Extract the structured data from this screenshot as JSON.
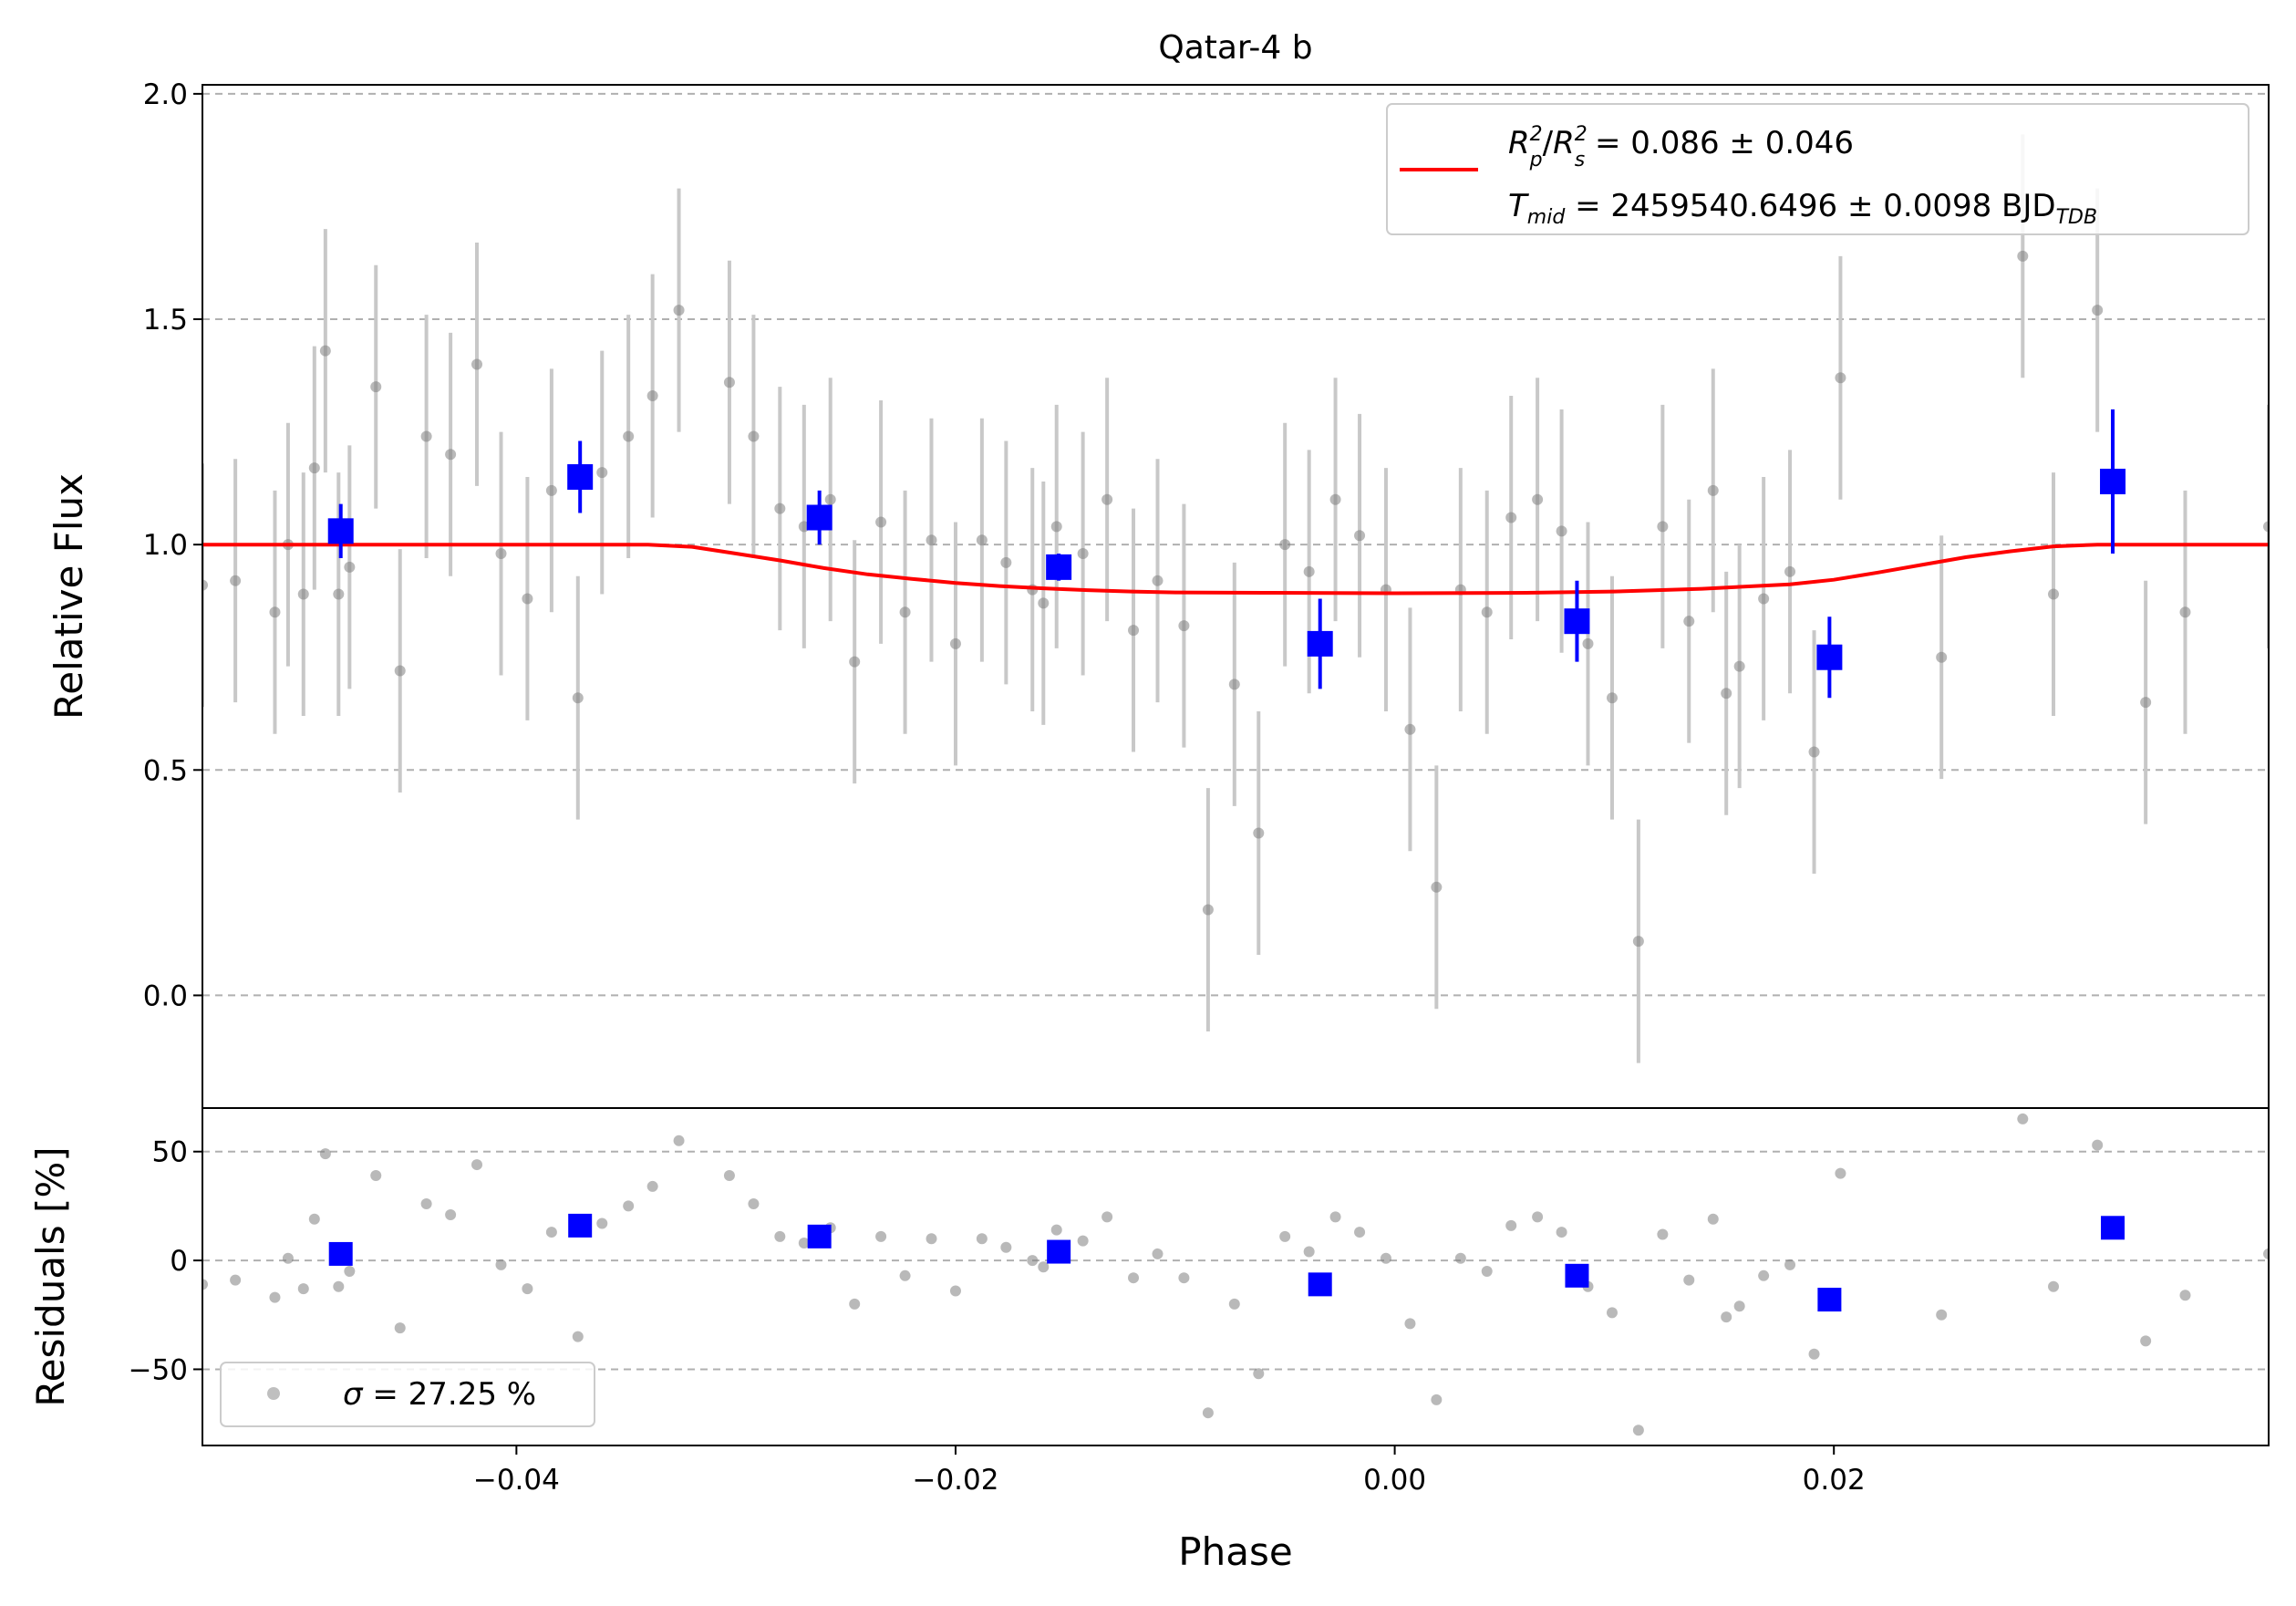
{
  "chart_data": [
    {
      "type": "scatter",
      "panel": "light-curve",
      "title": "Qatar-4 b",
      "xlabel": "Phase",
      "ylabel": "Relative Flux",
      "xlim": [
        -0.0543,
        0.0398
      ],
      "ylim": [
        -0.25,
        2.02
      ],
      "xticks": [
        "−0.04",
        "−0.02",
        "0.00",
        "0.02"
      ],
      "xtick_values": [
        -0.04,
        -0.02,
        0.0,
        0.02
      ],
      "yticks": [
        "0.0",
        "0.5",
        "1.0",
        "1.5",
        "2.0"
      ],
      "ytick_values": [
        0.0,
        0.5,
        1.0,
        1.5,
        2.0
      ],
      "grid": "horizontal dashed",
      "legend": {
        "placement": "top-right",
        "line1": {
          "lhs_sym": "R",
          "lhs_sub1": "p",
          "lhs_sup1": "2",
          "lhs_slash": "/",
          "lhs_sub2": "s",
          "lhs_sup2": "2",
          "text": " = 0.086 ± 0.046"
        },
        "line2": {
          "sym": "T",
          "sub": "mid",
          "text": " = 2459540.6496 ± 0.0098 BJD",
          "unit_sub": "TDB"
        }
      },
      "colors": {
        "raw": "#808080",
        "raw_err": "#c8c8c8",
        "binned": "#0000ff",
        "model": "#ff0000",
        "grid": "#b0b0b0"
      },
      "series": [
        {
          "kind": "raw-data",
          "err": 0.27,
          "points": [
            [
              -0.0543,
              0.91
            ],
            [
              -0.0528,
              0.92
            ],
            [
              -0.051,
              0.85
            ],
            [
              -0.0504,
              1.0
            ],
            [
              -0.0497,
              0.89
            ],
            [
              -0.0492,
              1.17
            ],
            [
              -0.0487,
              1.43
            ],
            [
              -0.0481,
              0.89
            ],
            [
              -0.0476,
              0.95
            ],
            [
              -0.0464,
              1.35
            ],
            [
              -0.0453,
              0.72
            ],
            [
              -0.0441,
              1.24
            ],
            [
              -0.043,
              1.2
            ],
            [
              -0.0418,
              1.4
            ],
            [
              -0.0407,
              0.98
            ],
            [
              -0.0395,
              0.88
            ],
            [
              -0.0384,
              1.12
            ],
            [
              -0.0372,
              0.66
            ],
            [
              -0.0361,
              1.16
            ],
            [
              -0.0349,
              1.24
            ],
            [
              -0.0338,
              1.33
            ],
            [
              -0.0326,
              1.52
            ],
            [
              -0.0303,
              1.36
            ],
            [
              -0.0292,
              1.24
            ],
            [
              -0.028,
              1.08
            ],
            [
              -0.0269,
              1.04
            ],
            [
              -0.0257,
              1.1
            ],
            [
              -0.0246,
              0.74
            ],
            [
              -0.0234,
              1.05
            ],
            [
              -0.0223,
              0.85
            ],
            [
              -0.0211,
              1.01
            ],
            [
              -0.02,
              0.78
            ],
            [
              -0.0188,
              1.01
            ],
            [
              -0.0177,
              0.96
            ],
            [
              -0.0165,
              0.9
            ],
            [
              -0.016,
              0.87
            ],
            [
              -0.0154,
              1.04
            ],
            [
              -0.0142,
              0.98
            ],
            [
              -0.0131,
              1.1
            ],
            [
              -0.0119,
              0.81
            ],
            [
              -0.0108,
              0.92
            ],
            [
              -0.0096,
              0.82
            ],
            [
              -0.0085,
              0.19
            ],
            [
              -0.0073,
              0.69
            ],
            [
              -0.0062,
              0.36
            ],
            [
              -0.005,
              1.0
            ],
            [
              -0.0039,
              0.94
            ],
            [
              -0.0027,
              1.1
            ],
            [
              -0.0016,
              1.02
            ],
            [
              -0.0004,
              0.9
            ],
            [
              0.0007,
              0.59
            ],
            [
              0.0019,
              0.24
            ],
            [
              0.003,
              0.9
            ],
            [
              0.0042,
              0.85
            ],
            [
              0.0053,
              1.06
            ],
            [
              0.0065,
              1.1
            ],
            [
              0.0076,
              1.03
            ],
            [
              0.0088,
              0.78
            ],
            [
              0.0099,
              0.66
            ],
            [
              0.0111,
              0.12
            ],
            [
              0.0122,
              1.04
            ],
            [
              0.0134,
              0.83
            ],
            [
              0.0145,
              1.12
            ],
            [
              0.0151,
              0.67
            ],
            [
              0.0157,
              0.73
            ],
            [
              0.0168,
              0.88
            ],
            [
              0.018,
              0.94
            ],
            [
              0.0191,
              0.54
            ],
            [
              0.0203,
              1.37
            ],
            [
              0.0249,
              0.75
            ],
            [
              0.0286,
              1.64
            ],
            [
              0.03,
              0.89
            ],
            [
              0.032,
              1.52
            ],
            [
              0.0342,
              0.65
            ],
            [
              0.036,
              0.85
            ],
            [
              0.0398,
              1.04
            ]
          ]
        },
        {
          "kind": "binned",
          "points": [
            [
              -0.048,
              1.03,
              0.06
            ],
            [
              -0.0371,
              1.15,
              0.08
            ],
            [
              -0.0262,
              1.06,
              0.06
            ],
            [
              -0.0153,
              0.95,
              0.03
            ],
            [
              -0.0034,
              0.78,
              0.1
            ],
            [
              0.0083,
              0.83,
              0.09
            ],
            [
              0.0198,
              0.75,
              0.09
            ],
            [
              0.0327,
              1.14,
              0.16
            ]
          ]
        },
        {
          "kind": "model",
          "depth": 0.108,
          "points": [
            [
              -0.0543,
              1.0
            ],
            [
              -0.034,
              1.0
            ],
            [
              -0.032,
              0.995
            ],
            [
              -0.03,
              0.98
            ],
            [
              -0.028,
              0.965
            ],
            [
              -0.026,
              0.948
            ],
            [
              -0.024,
              0.934
            ],
            [
              -0.022,
              0.924
            ],
            [
              -0.02,
              0.915
            ],
            [
              -0.018,
              0.908
            ],
            [
              -0.016,
              0.903
            ],
            [
              -0.014,
              0.899
            ],
            [
              -0.012,
              0.896
            ],
            [
              -0.01,
              0.894
            ],
            [
              -0.006,
              0.893
            ],
            [
              0.0,
              0.892
            ],
            [
              0.006,
              0.893
            ],
            [
              0.01,
              0.896
            ],
            [
              0.014,
              0.902
            ],
            [
              0.018,
              0.912
            ],
            [
              0.02,
              0.922
            ],
            [
              0.022,
              0.938
            ],
            [
              0.024,
              0.955
            ],
            [
              0.026,
              0.972
            ],
            [
              0.028,
              0.985
            ],
            [
              0.03,
              0.996
            ],
            [
              0.032,
              1.0
            ],
            [
              0.0398,
              1.0
            ]
          ]
        }
      ]
    },
    {
      "type": "scatter",
      "panel": "residuals",
      "xlabel": "Phase",
      "ylabel": "Residuals [%]",
      "xlim": [
        -0.0543,
        0.0398
      ],
      "ylim": [
        -85,
        70
      ],
      "yticks": [
        "−50",
        "0",
        "50"
      ],
      "ytick_values": [
        -50,
        0,
        50
      ],
      "grid": "horizontal dashed",
      "legend": {
        "placement": "bottom-left",
        "sym": "σ",
        "text": " = 27.25 %"
      },
      "series": [
        {
          "kind": "raw-residuals",
          "points": [
            [
              -0.0543,
              -11
            ],
            [
              -0.0528,
              -9
            ],
            [
              -0.051,
              -17
            ],
            [
              -0.0504,
              1
            ],
            [
              -0.0497,
              -13
            ],
            [
              -0.0492,
              19
            ],
            [
              -0.0487,
              49
            ],
            [
              -0.0481,
              -12
            ],
            [
              -0.0476,
              -5
            ],
            [
              -0.0464,
              39
            ],
            [
              -0.0453,
              -31
            ],
            [
              -0.0441,
              26
            ],
            [
              -0.043,
              21
            ],
            [
              -0.0418,
              44
            ],
            [
              -0.0407,
              -2
            ],
            [
              -0.0395,
              -13
            ],
            [
              -0.0384,
              13
            ],
            [
              -0.0372,
              -35
            ],
            [
              -0.0361,
              17
            ],
            [
              -0.0349,
              25
            ],
            [
              -0.0338,
              34
            ],
            [
              -0.0326,
              55
            ],
            [
              -0.0303,
              39
            ],
            [
              -0.0292,
              26
            ],
            [
              -0.028,
              11
            ],
            [
              -0.0269,
              8
            ],
            [
              -0.0257,
              15
            ],
            [
              -0.0246,
              -20
            ],
            [
              -0.0234,
              11
            ],
            [
              -0.0223,
              -7
            ],
            [
              -0.0211,
              10
            ],
            [
              -0.02,
              -14
            ],
            [
              -0.0188,
              10
            ],
            [
              -0.0177,
              6
            ],
            [
              -0.0165,
              0
            ],
            [
              -0.016,
              -3
            ],
            [
              -0.0154,
              14
            ],
            [
              -0.0142,
              9
            ],
            [
              -0.0131,
              20
            ],
            [
              -0.0119,
              -8
            ],
            [
              -0.0108,
              3
            ],
            [
              -0.0096,
              -8
            ],
            [
              -0.0085,
              -70
            ],
            [
              -0.0073,
              -20
            ],
            [
              -0.0062,
              -52
            ],
            [
              -0.005,
              11
            ],
            [
              -0.0039,
              4
            ],
            [
              -0.0027,
              20
            ],
            [
              -0.0016,
              13
            ],
            [
              -0.0004,
              1
            ],
            [
              0.0007,
              -29
            ],
            [
              0.0019,
              -64
            ],
            [
              0.003,
              1
            ],
            [
              0.0042,
              -5
            ],
            [
              0.0053,
              16
            ],
            [
              0.0065,
              20
            ],
            [
              0.0076,
              13
            ],
            [
              0.0088,
              -12
            ],
            [
              0.0099,
              -24
            ],
            [
              0.0111,
              -78
            ],
            [
              0.0122,
              12
            ],
            [
              0.0134,
              -9
            ],
            [
              0.0145,
              19
            ],
            [
              0.0151,
              -26
            ],
            [
              0.0157,
              -21
            ],
            [
              0.0168,
              -7
            ],
            [
              0.018,
              -2
            ],
            [
              0.0191,
              -43
            ],
            [
              0.0203,
              40
            ],
            [
              0.0249,
              -25
            ],
            [
              0.0286,
              65
            ],
            [
              0.03,
              -12
            ],
            [
              0.032,
              53
            ],
            [
              0.0342,
              -37
            ],
            [
              0.036,
              -16
            ],
            [
              0.0398,
              3
            ]
          ]
        },
        {
          "kind": "binned-residuals",
          "points": [
            [
              -0.048,
              3
            ],
            [
              -0.0371,
              16
            ],
            [
              -0.0262,
              11
            ],
            [
              -0.0153,
              4
            ],
            [
              -0.0034,
              -11
            ],
            [
              0.0083,
              -7
            ],
            [
              0.0198,
              -18
            ],
            [
              0.0327,
              15
            ]
          ]
        }
      ]
    }
  ]
}
